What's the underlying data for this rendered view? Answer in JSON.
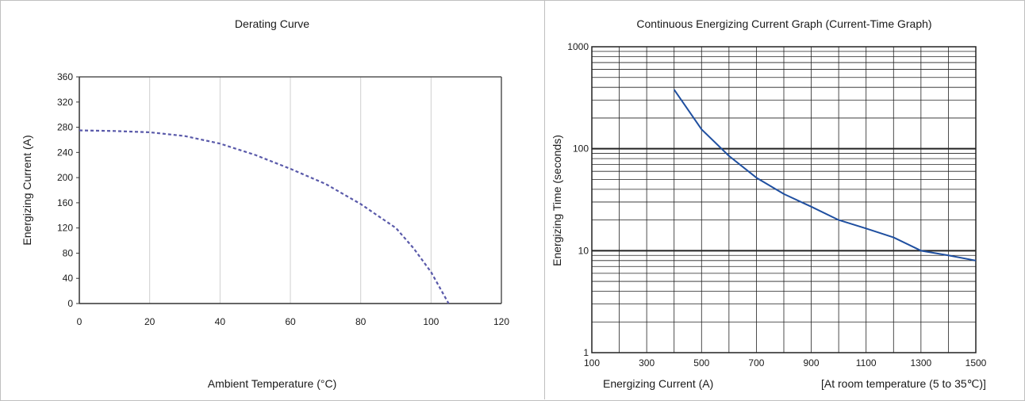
{
  "chart_data": [
    {
      "type": "line",
      "title": "Derating Curve",
      "xlabel": "Ambient Temperature (°C)",
      "ylabel": "Energizing Current (A)",
      "xlim": [
        0,
        120
      ],
      "ylim": [
        0,
        360
      ],
      "x_ticks": [
        "0",
        "20",
        "40",
        "60",
        "80",
        "100",
        "120"
      ],
      "y_ticks": [
        "0",
        "40",
        "80",
        "120",
        "160",
        "200",
        "240",
        "280",
        "320",
        "360"
      ],
      "grid": "vertical",
      "line_style": "dashed",
      "line_color": "#5a5aaa",
      "series": [
        {
          "x": [
            0,
            10,
            20,
            30,
            40,
            50,
            60,
            70,
            80,
            90,
            95,
            100,
            105
          ],
          "y": [
            275,
            274,
            272,
            266,
            254,
            236,
            214,
            190,
            158,
            120,
            88,
            50,
            0
          ]
        }
      ]
    },
    {
      "type": "line",
      "title": "Continuous Energizing Current Graph (Current-Time Graph)",
      "xlabel": "Energizing Current (A)",
      "ylabel": "Energizing Time (seconds)",
      "note": "[At room temperature (5 to 35℃)]",
      "xlim": [
        100,
        1500
      ],
      "ylim": [
        1,
        1000
      ],
      "yscale": "log",
      "x_ticks": [
        "100",
        "300",
        "500",
        "700",
        "900",
        "1100",
        "1300",
        "1500"
      ],
      "y_ticks": [
        "1",
        "10",
        "100",
        "1000"
      ],
      "grid": "both",
      "line_color": "#1f4fa0",
      "series": [
        {
          "x": [
            400,
            500,
            600,
            700,
            800,
            900,
            1000,
            1100,
            1200,
            1300,
            1400,
            1500
          ],
          "y": [
            380,
            155,
            85,
            52,
            36,
            27,
            20,
            16.5,
            13.5,
            10,
            9,
            8
          ]
        }
      ]
    }
  ]
}
